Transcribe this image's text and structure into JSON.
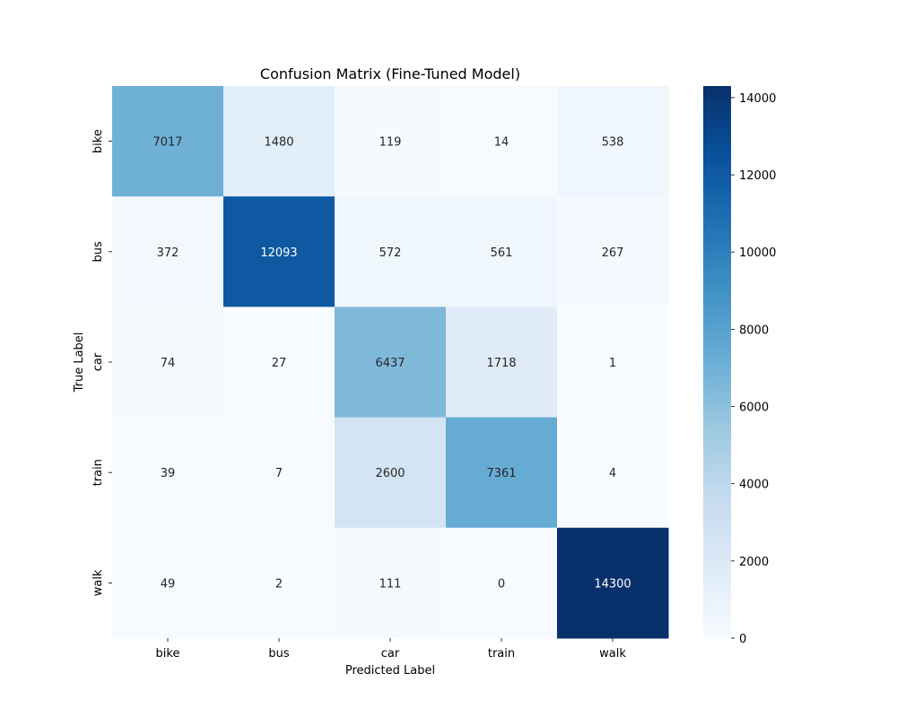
{
  "chart_data": {
    "type": "heatmap",
    "title": "Confusion Matrix (Fine-Tuned Model)",
    "xlabel": "Predicted Label",
    "ylabel": "True Label",
    "x_categories": [
      "bike",
      "bus",
      "car",
      "train",
      "walk"
    ],
    "y_categories": [
      "bike",
      "bus",
      "car",
      "train",
      "walk"
    ],
    "values": [
      [
        7017,
        1480,
        119,
        14,
        538
      ],
      [
        372,
        12093,
        572,
        561,
        267
      ],
      [
        74,
        27,
        6437,
        1718,
        1
      ],
      [
        39,
        7,
        2600,
        7361,
        4
      ],
      [
        49,
        2,
        111,
        0,
        14300
      ]
    ],
    "colormap": "Blues",
    "colorbar": {
      "range": [
        0,
        14300
      ],
      "ticks": [
        0,
        2000,
        4000,
        6000,
        8000,
        10000,
        12000,
        14000
      ]
    }
  }
}
